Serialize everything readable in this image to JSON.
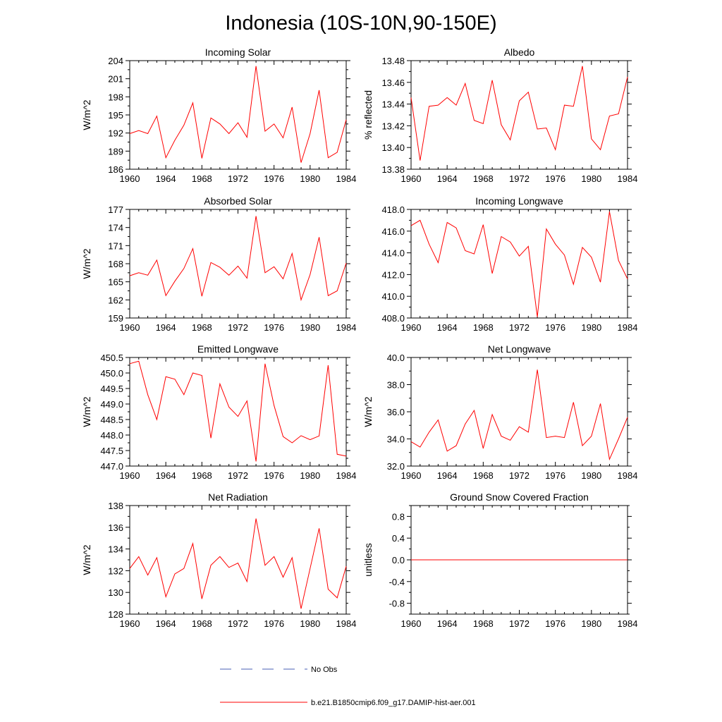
{
  "title": "Indonesia (10S-10N,90-150E)",
  "legend": {
    "obs_label": "No Obs",
    "obs_color": "#4a5fb5",
    "model_label": "b.e21.B1850cmip6.f09_g17.DAMIP-hist-aer.001",
    "model_color": "#ff0000"
  },
  "chart_data": [
    {
      "type": "line",
      "title": "Incoming Solar",
      "ylabel": "W/m^2",
      "xlim": [
        1960,
        1984
      ],
      "ylim": [
        186,
        204
      ],
      "xticks": [
        1960,
        1964,
        1968,
        1972,
        1976,
        1980,
        1984
      ],
      "yticks": [
        186,
        189,
        192,
        195,
        198,
        201,
        204
      ],
      "ytick_labels": [
        "186",
        "189",
        "192",
        "195",
        "198",
        "201",
        "204"
      ],
      "x": [
        1960,
        1961,
        1962,
        1963,
        1964,
        1965,
        1966,
        1967,
        1968,
        1969,
        1970,
        1971,
        1972,
        1973,
        1974,
        1975,
        1976,
        1977,
        1978,
        1979,
        1980,
        1981,
        1982,
        1983,
        1984
      ],
      "values": [
        191.9,
        192.4,
        191.9,
        194.8,
        187.9,
        190.8,
        193.3,
        197.0,
        187.8,
        194.5,
        193.5,
        191.9,
        193.7,
        191.3,
        203.1,
        192.3,
        193.5,
        191.2,
        196.3,
        187.1,
        191.9,
        199.1,
        187.9,
        188.8,
        194.2
      ]
    },
    {
      "type": "line",
      "title": "Albedo",
      "ylabel": "% reflected",
      "xlim": [
        1960,
        1984
      ],
      "ylim": [
        13.38,
        13.48
      ],
      "xticks": [
        1960,
        1964,
        1968,
        1972,
        1976,
        1980,
        1984
      ],
      "yticks": [
        13.38,
        13.4,
        13.42,
        13.44,
        13.46,
        13.48
      ],
      "ytick_labels": [
        "13.38",
        "13.40",
        "13.42",
        "13.44",
        "13.46",
        "13.48"
      ],
      "x": [
        1960,
        1961,
        1962,
        1963,
        1964,
        1965,
        1966,
        1967,
        1968,
        1969,
        1970,
        1971,
        1972,
        1973,
        1974,
        1975,
        1976,
        1977,
        1978,
        1979,
        1980,
        1981,
        1982,
        1983,
        1984
      ],
      "values": [
        13.446,
        13.388,
        13.438,
        13.439,
        13.446,
        13.439,
        13.459,
        13.425,
        13.422,
        13.462,
        13.421,
        13.407,
        13.443,
        13.451,
        13.417,
        13.418,
        13.398,
        13.439,
        13.438,
        13.475,
        13.408,
        13.398,
        13.429,
        13.431,
        13.465
      ]
    },
    {
      "type": "line",
      "title": "Absorbed Solar",
      "ylabel": "W/m^2",
      "xlim": [
        1960,
        1984
      ],
      "ylim": [
        159,
        177
      ],
      "xticks": [
        1960,
        1964,
        1968,
        1972,
        1976,
        1980,
        1984
      ],
      "yticks": [
        159,
        162,
        165,
        168,
        171,
        174,
        177
      ],
      "ytick_labels": [
        "159",
        "162",
        "165",
        "168",
        "171",
        "174",
        "177"
      ],
      "x": [
        1960,
        1961,
        1962,
        1963,
        1964,
        1965,
        1966,
        1967,
        1968,
        1969,
        1970,
        1971,
        1972,
        1973,
        1974,
        1975,
        1976,
        1977,
        1978,
        1979,
        1980,
        1981,
        1982,
        1983,
        1984
      ],
      "values": [
        166.0,
        166.5,
        166.1,
        168.6,
        162.7,
        165.1,
        167.2,
        170.5,
        162.6,
        168.2,
        167.4,
        166.1,
        167.6,
        165.6,
        175.9,
        166.5,
        167.5,
        165.5,
        169.7,
        162.0,
        166.2,
        172.4,
        162.7,
        163.5,
        168.1
      ]
    },
    {
      "type": "line",
      "title": "Incoming Longwave",
      "ylabel": "",
      "xlim": [
        1960,
        1984
      ],
      "ylim": [
        408,
        418
      ],
      "xticks": [
        1960,
        1964,
        1968,
        1972,
        1976,
        1980,
        1984
      ],
      "yticks": [
        408,
        410,
        412,
        414,
        416,
        418
      ],
      "ytick_labels": [
        "408.0",
        "410.0",
        "412.0",
        "414.0",
        "416.0",
        "418.0"
      ],
      "x": [
        1960,
        1961,
        1962,
        1963,
        1964,
        1965,
        1966,
        1967,
        1968,
        1969,
        1970,
        1971,
        1972,
        1973,
        1974,
        1975,
        1976,
        1977,
        1978,
        1979,
        1980,
        1981,
        1982,
        1983,
        1984
      ],
      "values": [
        416.5,
        417.0,
        414.8,
        413.1,
        416.8,
        416.3,
        414.2,
        413.9,
        416.6,
        412.1,
        415.5,
        415.0,
        413.7,
        414.6,
        408.1,
        416.2,
        414.8,
        413.8,
        411.1,
        414.5,
        413.6,
        411.3,
        417.8,
        413.3,
        411.6
      ]
    },
    {
      "type": "line",
      "title": "Emitted Longwave",
      "ylabel": "W/m^2",
      "xlim": [
        1960,
        1984
      ],
      "ylim": [
        447.0,
        450.5
      ],
      "xticks": [
        1960,
        1964,
        1968,
        1972,
        1976,
        1980,
        1984
      ],
      "yticks": [
        447.0,
        447.5,
        448.0,
        448.5,
        449.0,
        449.5,
        450.0,
        450.5
      ],
      "ytick_labels": [
        "447.0",
        "447.5",
        "448.0",
        "448.5",
        "449.0",
        "449.5",
        "450.0",
        "450.5"
      ],
      "x": [
        1960,
        1961,
        1962,
        1963,
        1964,
        1965,
        1966,
        1967,
        1968,
        1969,
        1970,
        1971,
        1972,
        1973,
        1974,
        1975,
        1976,
        1977,
        1978,
        1979,
        1980,
        1981,
        1982,
        1983,
        1984
      ],
      "values": [
        450.3,
        450.38,
        449.3,
        448.5,
        449.88,
        449.8,
        449.3,
        450.0,
        449.92,
        447.9,
        449.65,
        448.9,
        448.6,
        449.1,
        447.15,
        450.3,
        448.95,
        447.95,
        447.75,
        447.98,
        447.85,
        447.97,
        450.25,
        447.38,
        447.32
      ]
    },
    {
      "type": "line",
      "title": "Net Longwave",
      "ylabel": "W/m^2",
      "xlim": [
        1960,
        1984
      ],
      "ylim": [
        32,
        40
      ],
      "xticks": [
        1960,
        1964,
        1968,
        1972,
        1976,
        1980,
        1984
      ],
      "yticks": [
        32,
        34,
        36,
        38,
        40
      ],
      "ytick_labels": [
        "32.0",
        "34.0",
        "36.0",
        "38.0",
        "40.0"
      ],
      "x": [
        1960,
        1961,
        1962,
        1963,
        1964,
        1965,
        1966,
        1967,
        1968,
        1969,
        1970,
        1971,
        1972,
        1973,
        1974,
        1975,
        1976,
        1977,
        1978,
        1979,
        1980,
        1981,
        1982,
        1983,
        1984
      ],
      "values": [
        33.8,
        33.4,
        34.5,
        35.4,
        33.1,
        33.5,
        35.1,
        36.1,
        33.3,
        35.8,
        34.2,
        33.9,
        34.9,
        34.5,
        39.1,
        34.1,
        34.2,
        34.1,
        36.7,
        33.5,
        34.2,
        36.6,
        32.5,
        34.0,
        35.6
      ]
    },
    {
      "type": "line",
      "title": "Net Radiation",
      "ylabel": "W/m^2",
      "xlim": [
        1960,
        1984
      ],
      "ylim": [
        128,
        138
      ],
      "xticks": [
        1960,
        1964,
        1968,
        1972,
        1976,
        1980,
        1984
      ],
      "yticks": [
        128,
        130,
        132,
        134,
        136,
        138
      ],
      "ytick_labels": [
        "128",
        "130",
        "132",
        "134",
        "136",
        "138"
      ],
      "x": [
        1960,
        1961,
        1962,
        1963,
        1964,
        1965,
        1966,
        1967,
        1968,
        1969,
        1970,
        1971,
        1972,
        1973,
        1974,
        1975,
        1976,
        1977,
        1978,
        1979,
        1980,
        1981,
        1982,
        1983,
        1984
      ],
      "values": [
        132.2,
        133.3,
        131.6,
        133.2,
        129.6,
        131.7,
        132.2,
        134.5,
        129.4,
        132.5,
        133.3,
        132.3,
        132.7,
        131.0,
        136.8,
        132.5,
        133.3,
        131.4,
        133.2,
        128.5,
        132.2,
        135.9,
        130.3,
        129.5,
        132.4
      ]
    },
    {
      "type": "line",
      "title": "Ground Snow Covered Fraction",
      "ylabel": "unitless",
      "xlim": [
        1960,
        1984
      ],
      "ylim": [
        -1.0,
        1.0
      ],
      "xticks": [
        1960,
        1964,
        1968,
        1972,
        1976,
        1980,
        1984
      ],
      "yticks": [
        -0.8,
        -0.4,
        0.0,
        0.4,
        0.8
      ],
      "ytick_labels": [
        "-0.8",
        "-0.4",
        "0.0",
        "0.4",
        "0.8"
      ],
      "x": [
        1960,
        1961,
        1962,
        1963,
        1964,
        1965,
        1966,
        1967,
        1968,
        1969,
        1970,
        1971,
        1972,
        1973,
        1974,
        1975,
        1976,
        1977,
        1978,
        1979,
        1980,
        1981,
        1982,
        1983,
        1984
      ],
      "values": [
        0,
        0,
        0,
        0,
        0,
        0,
        0,
        0,
        0,
        0,
        0,
        0,
        0,
        0,
        0,
        0,
        0,
        0,
        0,
        0,
        0,
        0,
        0,
        0,
        0
      ]
    }
  ]
}
